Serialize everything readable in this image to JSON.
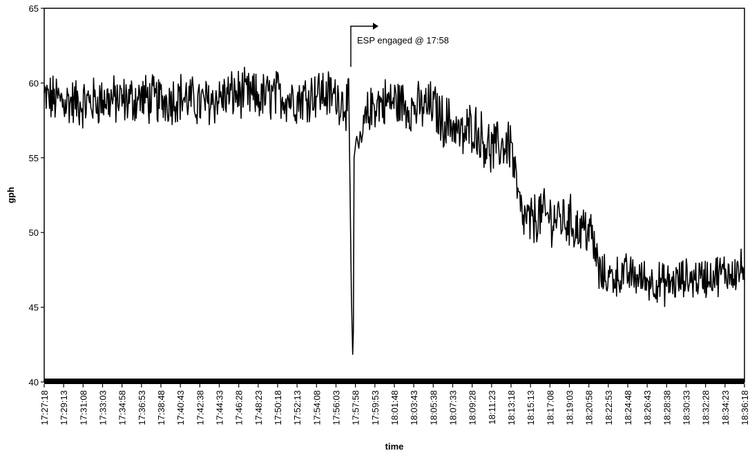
{
  "chart_data": {
    "type": "line",
    "xlabel": "time",
    "ylabel": "gph",
    "ylim": [
      40,
      65
    ],
    "y_ticks": [
      "40",
      "45",
      "50",
      "55",
      "60",
      "65"
    ],
    "x_tick_labels": [
      "17:27:18",
      "17:29:13",
      "17:31:08",
      "17:33:03",
      "17:34:58",
      "17:36:53",
      "17:38:48",
      "17:40:43",
      "17:42:38",
      "17:44:33",
      "17:46:28",
      "17:48:23",
      "17:50:18",
      "17:52:13",
      "17:54:08",
      "17:56:03",
      "17:57:58",
      "17:59:53",
      "18:01:48",
      "18:03:43",
      "18:05:38",
      "18:07:33",
      "18:09:28",
      "18:11:23",
      "18:13:18",
      "18:15:13",
      "18:17:08",
      "18:19:03",
      "18:20:58",
      "18:22:53",
      "18:24:48",
      "18:26:43",
      "18:28:38",
      "18:30:33",
      "18:32:28",
      "18:34:23",
      "18:36:18"
    ],
    "grid": false,
    "legend": "none",
    "line_color": "#000000",
    "annotation": {
      "text": "ESP engaged @ 17:58",
      "at": "17:58"
    },
    "series": [
      {
        "x": [
          "17:27:18",
          "17:29:13",
          "17:31:08",
          "17:33:03",
          "17:34:58",
          "17:36:53",
          "17:38:48",
          "17:40:43",
          "17:42:38",
          "17:44:33",
          "17:46:28",
          "17:48:23",
          "17:50:18",
          "17:52:13",
          "17:54:08",
          "17:56:03",
          "17:57:20",
          "17:57:35",
          "17:57:45",
          "17:57:50",
          "17:58:05",
          "17:58:20",
          "17:59:00",
          "17:59:20",
          "17:59:53",
          "18:01:48",
          "18:03:43",
          "18:05:38",
          "18:06:30",
          "18:07:33",
          "18:08:30",
          "18:09:28",
          "18:11:23",
          "18:12:20",
          "18:13:18",
          "18:13:50",
          "18:14:20",
          "18:15:13",
          "18:16:00",
          "18:17:08",
          "18:19:03",
          "18:20:00",
          "18:20:58",
          "18:21:40",
          "18:22:00",
          "18:22:53",
          "18:24:48",
          "18:26:43",
          "18:28:38",
          "18:30:33",
          "18:32:28",
          "18:34:23",
          "18:36:18"
        ],
        "y": [
          59.0,
          58.8,
          58.6,
          58.9,
          58.8,
          59.0,
          58.8,
          59.1,
          58.6,
          59.0,
          59.3,
          59.0,
          59.2,
          58.9,
          59.4,
          59.1,
          58.5,
          45.0,
          40.5,
          55.0,
          56.5,
          55.5,
          57.5,
          58.0,
          58.6,
          58.8,
          58.3,
          58.5,
          57.5,
          57.3,
          56.3,
          57.2,
          55.5,
          55.8,
          56.0,
          53.0,
          51.0,
          50.6,
          51.2,
          51.0,
          50.8,
          50.2,
          50.3,
          48.5,
          47.2,
          47.0,
          47.2,
          46.8,
          46.5,
          46.9,
          47.0,
          47.3,
          47.5
        ]
      }
    ]
  }
}
